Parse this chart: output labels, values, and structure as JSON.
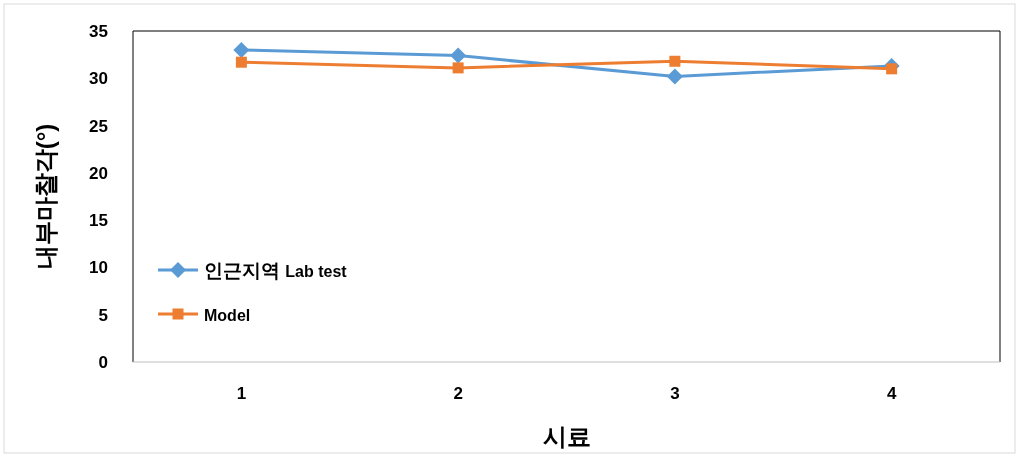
{
  "chart_data": {
    "type": "line",
    "xlabel": "시료",
    "ylabel": "내부마찰각(°)",
    "categories": [
      "1",
      "2",
      "3",
      "4"
    ],
    "series": [
      {
        "name": "인근지역 $^{}$**Lab test**",
        "color": "#5b9bd5",
        "marker": "diamond",
        "values": [
          33.0,
          32.4,
          30.2,
          31.3
        ]
      },
      {
        "name": "**Model**",
        "color": "#ed7d31",
        "marker": "square",
        "values": [
          31.7,
          31.1,
          31.8,
          31.0
        ]
      }
    ],
    "ylim": [
      0,
      35
    ],
    "yticks": [
      0,
      5,
      10,
      15,
      20,
      25,
      30,
      35
    ],
    "grid": false,
    "legend": "bottom left"
  }
}
